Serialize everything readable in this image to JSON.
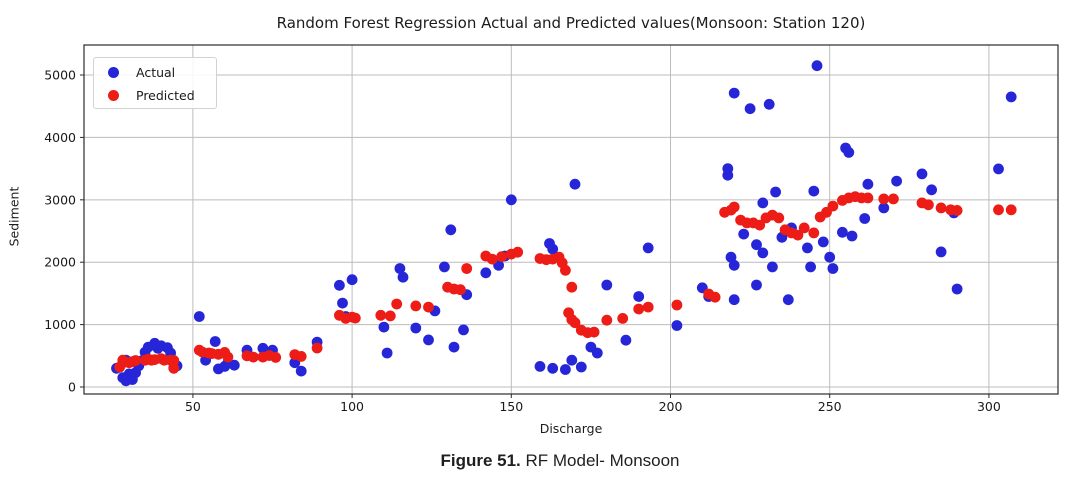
{
  "caption": {
    "label": "Figure 51.",
    "text": " RF Model- Monsoon"
  },
  "chart_data": {
    "type": "scatter",
    "title": "Random Forest Regression Actual and Predicted values(Monsoon: Station 120)",
    "xlabel": "Discharge",
    "ylabel": "Sediment",
    "xlim": [
      15.8,
      321.7
    ],
    "ylim": [
      -112,
      5481
    ],
    "xticks": [
      50,
      100,
      150,
      200,
      250,
      300
    ],
    "yticks": [
      0,
      1000,
      2000,
      3000,
      4000,
      5000
    ],
    "grid": true,
    "grid_color": "#bcbcbc",
    "frame_color": "#2b2b2b",
    "legend_position": "upper left",
    "marker_radius": 5.4,
    "series": [
      {
        "name": "Actual",
        "color": "#2626d8",
        "points": [
          [
            26,
            300
          ],
          [
            28,
            150
          ],
          [
            29,
            100
          ],
          [
            29,
            430
          ],
          [
            30,
            210
          ],
          [
            31,
            120
          ],
          [
            32,
            230
          ],
          [
            33,
            340
          ],
          [
            34,
            420
          ],
          [
            35,
            560
          ],
          [
            36,
            640
          ],
          [
            38,
            700
          ],
          [
            39,
            620
          ],
          [
            40,
            660
          ],
          [
            42,
            630
          ],
          [
            43,
            545
          ],
          [
            44,
            310
          ],
          [
            45,
            340
          ],
          [
            52,
            1130
          ],
          [
            54,
            430
          ],
          [
            57,
            730
          ],
          [
            58,
            290
          ],
          [
            60,
            330
          ],
          [
            61,
            385
          ],
          [
            63,
            350
          ],
          [
            67,
            590
          ],
          [
            72,
            620
          ],
          [
            75,
            590
          ],
          [
            82,
            390
          ],
          [
            84,
            255
          ],
          [
            89,
            720
          ],
          [
            96,
            1630
          ],
          [
            97,
            1345
          ],
          [
            98,
            1130
          ],
          [
            100,
            1720
          ],
          [
            110,
            960
          ],
          [
            111,
            545
          ],
          [
            115,
            1900
          ],
          [
            116,
            1760
          ],
          [
            120,
            945
          ],
          [
            124,
            755
          ],
          [
            126,
            1220
          ],
          [
            129,
            1925
          ],
          [
            131,
            2520
          ],
          [
            132,
            640
          ],
          [
            135,
            915
          ],
          [
            136,
            1480
          ],
          [
            142,
            1830
          ],
          [
            146,
            1950
          ],
          [
            148,
            2100
          ],
          [
            150,
            3000
          ],
          [
            159,
            330
          ],
          [
            162,
            2300
          ],
          [
            163,
            2210
          ],
          [
            163,
            300
          ],
          [
            167,
            280
          ],
          [
            169,
            430
          ],
          [
            170,
            3250
          ],
          [
            172,
            320
          ],
          [
            175,
            640
          ],
          [
            177,
            545
          ],
          [
            180,
            1635
          ],
          [
            186,
            750
          ],
          [
            190,
            1450
          ],
          [
            193,
            2230
          ],
          [
            202,
            985
          ],
          [
            210,
            1590
          ],
          [
            212,
            1450
          ],
          [
            218,
            3500
          ],
          [
            218,
            3395
          ],
          [
            219,
            2080
          ],
          [
            220,
            1950
          ],
          [
            220,
            1400
          ],
          [
            220,
            4710
          ],
          [
            223,
            2450
          ],
          [
            225,
            4460
          ],
          [
            227,
            2280
          ],
          [
            227,
            1635
          ],
          [
            229,
            2950
          ],
          [
            229,
            2150
          ],
          [
            231,
            4530
          ],
          [
            232,
            1925
          ],
          [
            233,
            3125
          ],
          [
            235,
            2400
          ],
          [
            237,
            1400
          ],
          [
            238,
            2550
          ],
          [
            243,
            2230
          ],
          [
            244,
            1925
          ],
          [
            245,
            3140
          ],
          [
            246,
            5150
          ],
          [
            248,
            2325
          ],
          [
            250,
            2080
          ],
          [
            251,
            1900
          ],
          [
            254,
            2480
          ],
          [
            255,
            3830
          ],
          [
            256,
            3760
          ],
          [
            257,
            2420
          ],
          [
            261,
            2700
          ],
          [
            262,
            3250
          ],
          [
            267,
            2870
          ],
          [
            271,
            3300
          ],
          [
            279,
            3415
          ],
          [
            282,
            3160
          ],
          [
            285,
            2165
          ],
          [
            289,
            2790
          ],
          [
            290,
            1570
          ],
          [
            303,
            3495
          ],
          [
            307,
            4650
          ]
        ]
      },
      {
        "name": "Predicted",
        "color": "#ed1c16",
        "points": [
          [
            27,
            320
          ],
          [
            28,
            430
          ],
          [
            29,
            400
          ],
          [
            30,
            390
          ],
          [
            31,
            405
          ],
          [
            32,
            425
          ],
          [
            35,
            430
          ],
          [
            36,
            445
          ],
          [
            37,
            430
          ],
          [
            38,
            440
          ],
          [
            40,
            455
          ],
          [
            41,
            430
          ],
          [
            43,
            430
          ],
          [
            44,
            425
          ],
          [
            44,
            300
          ],
          [
            52,
            590
          ],
          [
            53,
            560
          ],
          [
            55,
            545
          ],
          [
            56,
            535
          ],
          [
            58,
            525
          ],
          [
            60,
            555
          ],
          [
            61,
            480
          ],
          [
            67,
            500
          ],
          [
            69,
            480
          ],
          [
            72,
            480
          ],
          [
            74,
            505
          ],
          [
            76,
            475
          ],
          [
            82,
            520
          ],
          [
            84,
            490
          ],
          [
            89,
            625
          ],
          [
            96,
            1150
          ],
          [
            98,
            1100
          ],
          [
            100,
            1120
          ],
          [
            101,
            1105
          ],
          [
            109,
            1150
          ],
          [
            112,
            1140
          ],
          [
            114,
            1330
          ],
          [
            120,
            1300
          ],
          [
            124,
            1280
          ],
          [
            130,
            1600
          ],
          [
            132,
            1570
          ],
          [
            134,
            1560
          ],
          [
            136,
            1900
          ],
          [
            142,
            2100
          ],
          [
            144,
            2050
          ],
          [
            147,
            2090
          ],
          [
            150,
            2130
          ],
          [
            152,
            2160
          ],
          [
            159,
            2060
          ],
          [
            161,
            2040
          ],
          [
            163,
            2050
          ],
          [
            165,
            2080
          ],
          [
            166,
            1990
          ],
          [
            167,
            1870
          ],
          [
            169,
            1600
          ],
          [
            168,
            1190
          ],
          [
            169,
            1080
          ],
          [
            170,
            1030
          ],
          [
            172,
            910
          ],
          [
            174,
            870
          ],
          [
            176,
            880
          ],
          [
            180,
            1070
          ],
          [
            185,
            1100
          ],
          [
            190,
            1250
          ],
          [
            193,
            1280
          ],
          [
            202,
            1315
          ],
          [
            212,
            1490
          ],
          [
            214,
            1440
          ],
          [
            217,
            2800
          ],
          [
            219,
            2835
          ],
          [
            220,
            2885
          ],
          [
            222,
            2675
          ],
          [
            224,
            2630
          ],
          [
            226,
            2630
          ],
          [
            228,
            2595
          ],
          [
            230,
            2710
          ],
          [
            232,
            2755
          ],
          [
            234,
            2710
          ],
          [
            236,
            2520
          ],
          [
            238,
            2470
          ],
          [
            240,
            2435
          ],
          [
            242,
            2550
          ],
          [
            245,
            2470
          ],
          [
            247,
            2725
          ],
          [
            249,
            2800
          ],
          [
            251,
            2900
          ],
          [
            254,
            2990
          ],
          [
            256,
            3030
          ],
          [
            258,
            3050
          ],
          [
            260,
            3030
          ],
          [
            262,
            3030
          ],
          [
            267,
            3015
          ],
          [
            270,
            3015
          ],
          [
            279,
            2950
          ],
          [
            281,
            2920
          ],
          [
            285,
            2870
          ],
          [
            288,
            2840
          ],
          [
            290,
            2830
          ],
          [
            303,
            2840
          ],
          [
            307,
            2840
          ]
        ]
      }
    ]
  }
}
